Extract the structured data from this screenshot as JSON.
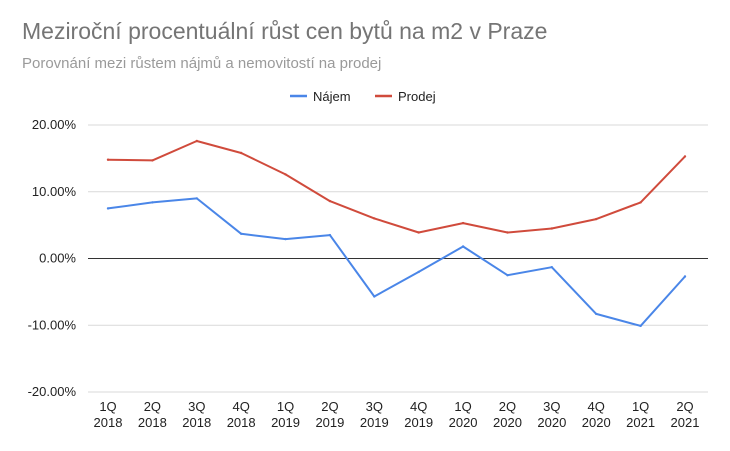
{
  "chart_data": {
    "type": "line",
    "title": "Meziroční procentuální růst cen bytů na m2 v Praze",
    "subtitle": "Porovnání mezi růstem nájmů a nemovitostí na prodej",
    "legend_position": "top-center",
    "grid": true,
    "y_ticks": [
      "-20.00%",
      "-10.00%",
      "0.00%",
      "10.00%",
      "20.00%"
    ],
    "ylim": [
      -20,
      20
    ],
    "categories": [
      [
        "1Q",
        "2018"
      ],
      [
        "2Q",
        "2018"
      ],
      [
        "3Q",
        "2018"
      ],
      [
        "4Q",
        "2018"
      ],
      [
        "1Q",
        "2019"
      ],
      [
        "2Q",
        "2019"
      ],
      [
        "3Q",
        "2019"
      ],
      [
        "4Q",
        "2019"
      ],
      [
        "1Q",
        "2020"
      ],
      [
        "2Q",
        "2020"
      ],
      [
        "3Q",
        "2020"
      ],
      [
        "4Q",
        "2020"
      ],
      [
        "1Q",
        "2021"
      ],
      [
        "2Q",
        "2021"
      ]
    ],
    "series": [
      {
        "name": "Nájem",
        "color": "#4a86e8",
        "values": [
          7.5,
          8.4,
          9.0,
          3.7,
          2.9,
          3.5,
          -5.7,
          -2.0,
          1.8,
          -2.5,
          -1.3,
          -8.3,
          -10.1,
          -2.7
        ]
      },
      {
        "name": "Prodej",
        "color": "#d04b3c",
        "values": [
          14.8,
          14.7,
          17.6,
          15.8,
          12.6,
          8.6,
          6.0,
          3.9,
          5.3,
          3.9,
          4.5,
          5.9,
          8.4,
          15.3
        ]
      }
    ]
  }
}
